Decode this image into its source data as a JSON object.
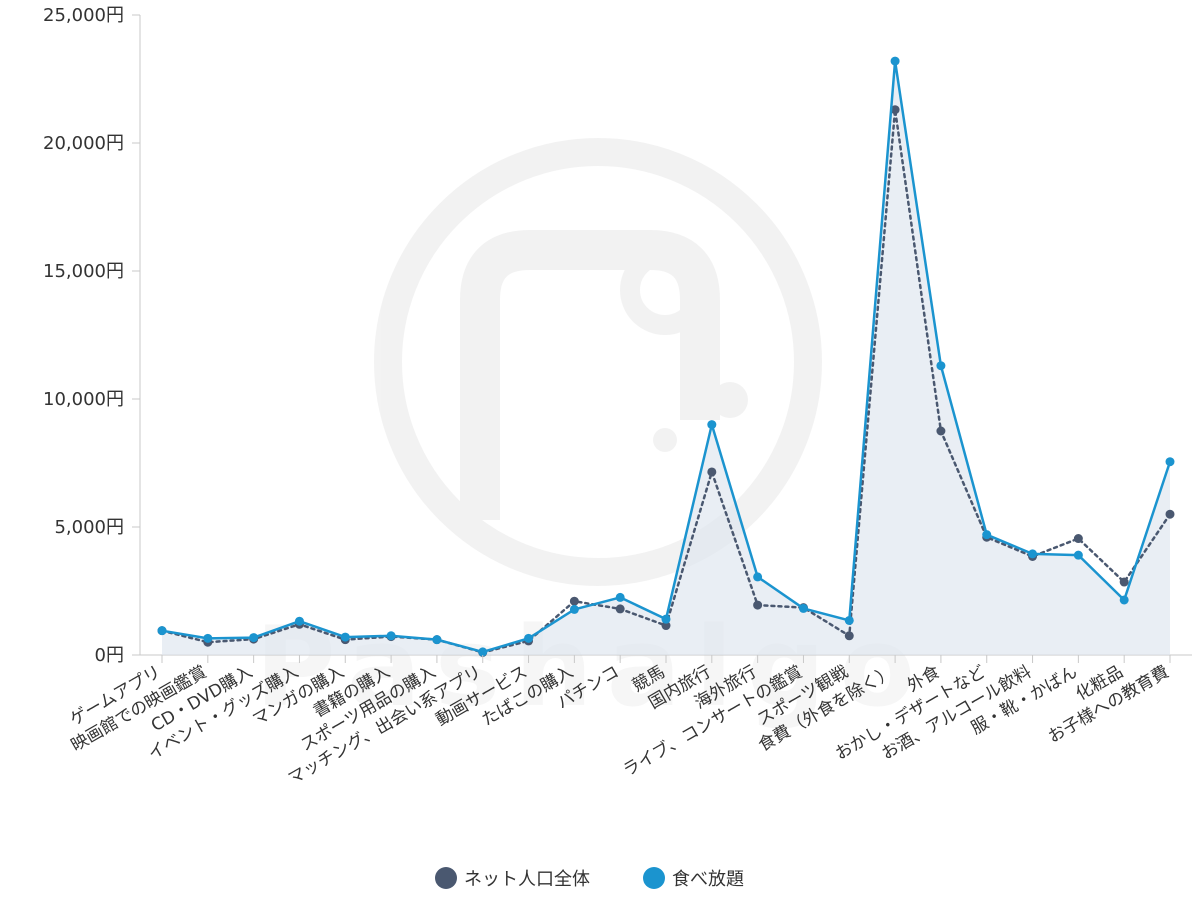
{
  "chart_data": {
    "type": "line",
    "y_unit_suffix": "円",
    "ylim": [
      0,
      25000
    ],
    "yticks": [
      0,
      5000,
      10000,
      15000,
      20000,
      25000
    ],
    "grid": false,
    "legend_position": "bottom-center",
    "categories": [
      "ゲームアプリ",
      "映画館での映画鑑賞",
      "CD・DVD購入",
      "イベント・グッズ購入",
      "マンガの購入",
      "書籍の購入",
      "スポーツ用品の購入",
      "マッチング、出会い系アプリ",
      "動画サービス",
      "たばこの購入",
      "パチンコ",
      "競馬",
      "国内旅行",
      "海外旅行",
      "ライブ、コンサートの鑑賞",
      "スポーツ観戦",
      "食費（外食を除く）",
      "外食",
      "おかし・デザートなど",
      "お酒、アルコール飲料",
      "服・靴・かばん",
      "化粧品",
      "お子様への教育費"
    ],
    "series": [
      {
        "name": "ネット人口全体",
        "color": "#4a5870",
        "style": "dotted",
        "values": [
          950,
          500,
          620,
          1200,
          600,
          720,
          600,
          100,
          550,
          2100,
          1800,
          1150,
          7150,
          1950,
          1850,
          750,
          21300,
          8750,
          4600,
          3850,
          4550,
          2850,
          5500
        ]
      },
      {
        "name": "食べ放題",
        "color": "#1b94cf",
        "style": "solid",
        "values": [
          950,
          650,
          680,
          1320,
          700,
          750,
          600,
          120,
          650,
          1780,
          2250,
          1400,
          9000,
          3050,
          1820,
          1350,
          23200,
          11300,
          4700,
          3950,
          3900,
          2150,
          7550
        ]
      }
    ]
  },
  "watermark": {
    "text": "Pashalgo"
  }
}
